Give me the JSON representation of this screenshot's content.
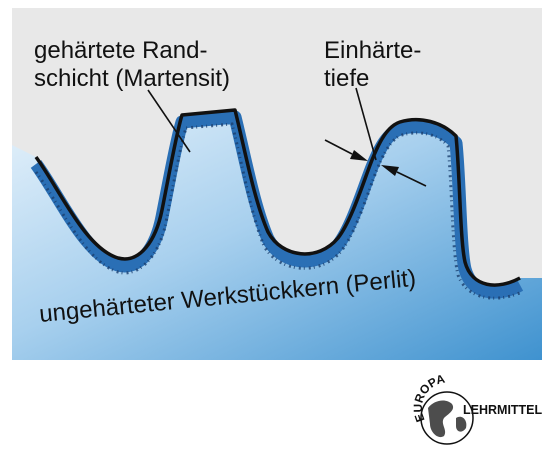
{
  "labels": {
    "surface_layer_line1": "gehärtete Rand-",
    "surface_layer_line2": "schicht (Martensit)",
    "depth_line1": "Einhärte-",
    "depth_line2": "tiefe",
    "core": "ungehärteter Werkstückkern (Perlit)"
  },
  "logo": {
    "top": "EUROPA",
    "bottom": "LEHRMITTEL"
  },
  "colors": {
    "panel_background": "#e8e8e8",
    "core_light": "#dcecf8",
    "core_dark": "#3f92cf",
    "hardened_layer": "#2a6fb5",
    "outline": "#111111"
  }
}
